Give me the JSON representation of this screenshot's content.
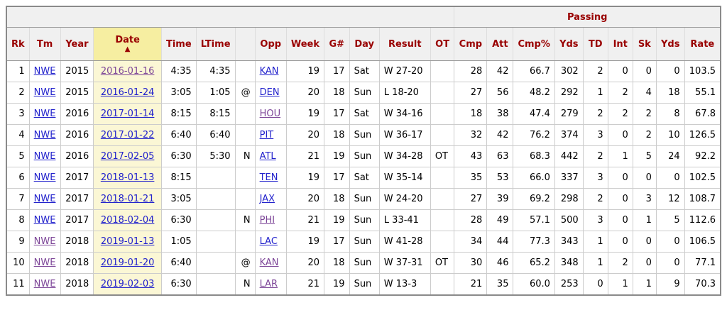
{
  "colors": {
    "header_text": "#990000",
    "link": "#2222cc",
    "link_visited": "#7d4698",
    "header_bg": "#f0f0f0",
    "sort_header_bg": "#f6eea1",
    "highlight_cell_bg": "#fbf7d5",
    "grid": "#cccccc",
    "outer_border": "#8a8a8a"
  },
  "table": {
    "group_header": {
      "blank": "",
      "passing": "Passing"
    },
    "sort_arrow": "▲",
    "sorted_column": "date",
    "columns": [
      {
        "key": "rk",
        "label": "Rk"
      },
      {
        "key": "tm",
        "label": "Tm"
      },
      {
        "key": "year",
        "label": "Year"
      },
      {
        "key": "date",
        "label": "Date"
      },
      {
        "key": "time",
        "label": "Time"
      },
      {
        "key": "ltime",
        "label": "LTime"
      },
      {
        "key": "at",
        "label": ""
      },
      {
        "key": "opp",
        "label": "Opp"
      },
      {
        "key": "week",
        "label": "Week"
      },
      {
        "key": "gn",
        "label": "G#"
      },
      {
        "key": "day",
        "label": "Day"
      },
      {
        "key": "result",
        "label": "Result"
      },
      {
        "key": "ot",
        "label": "OT"
      },
      {
        "key": "cmp",
        "label": "Cmp"
      },
      {
        "key": "att",
        "label": "Att"
      },
      {
        "key": "cmppct",
        "label": "Cmp%"
      },
      {
        "key": "yds",
        "label": "Yds"
      },
      {
        "key": "td",
        "label": "TD"
      },
      {
        "key": "int",
        "label": "Int"
      },
      {
        "key": "sk",
        "label": "Sk"
      },
      {
        "key": "yds2",
        "label": "Yds"
      },
      {
        "key": "rate",
        "label": "Rate"
      }
    ],
    "rows": [
      {
        "rk": "1",
        "tm": {
          "text": "NWE",
          "visited": false
        },
        "year": "2015",
        "date": {
          "text": "2016-01-16",
          "visited": true
        },
        "time": "4:35",
        "ltime": "4:35",
        "at": "",
        "opp": {
          "text": "KAN",
          "visited": false
        },
        "week": "19",
        "gn": "17",
        "day": "Sat",
        "result": "W 27-20",
        "ot": "",
        "cmp": "28",
        "att": "42",
        "cmppct": "66.7",
        "yds": "302",
        "td": "2",
        "int": "0",
        "sk": "0",
        "yds2": "0",
        "rate": "103.5"
      },
      {
        "rk": "2",
        "tm": {
          "text": "NWE",
          "visited": false
        },
        "year": "2015",
        "date": {
          "text": "2016-01-24",
          "visited": false
        },
        "time": "3:05",
        "ltime": "1:05",
        "at": "@",
        "opp": {
          "text": "DEN",
          "visited": false
        },
        "week": "20",
        "gn": "18",
        "day": "Sun",
        "result": "L 18-20",
        "ot": "",
        "cmp": "27",
        "att": "56",
        "cmppct": "48.2",
        "yds": "292",
        "td": "1",
        "int": "2",
        "sk": "4",
        "yds2": "18",
        "rate": "55.1"
      },
      {
        "rk": "3",
        "tm": {
          "text": "NWE",
          "visited": false
        },
        "year": "2016",
        "date": {
          "text": "2017-01-14",
          "visited": false
        },
        "time": "8:15",
        "ltime": "8:15",
        "at": "",
        "opp": {
          "text": "HOU",
          "visited": true
        },
        "week": "19",
        "gn": "17",
        "day": "Sat",
        "result": "W 34-16",
        "ot": "",
        "cmp": "18",
        "att": "38",
        "cmppct": "47.4",
        "yds": "279",
        "td": "2",
        "int": "2",
        "sk": "2",
        "yds2": "8",
        "rate": "67.8"
      },
      {
        "rk": "4",
        "tm": {
          "text": "NWE",
          "visited": false
        },
        "year": "2016",
        "date": {
          "text": "2017-01-22",
          "visited": false
        },
        "time": "6:40",
        "ltime": "6:40",
        "at": "",
        "opp": {
          "text": "PIT",
          "visited": false
        },
        "week": "20",
        "gn": "18",
        "day": "Sun",
        "result": "W 36-17",
        "ot": "",
        "cmp": "32",
        "att": "42",
        "cmppct": "76.2",
        "yds": "374",
        "td": "3",
        "int": "0",
        "sk": "2",
        "yds2": "10",
        "rate": "126.5"
      },
      {
        "rk": "5",
        "tm": {
          "text": "NWE",
          "visited": false
        },
        "year": "2016",
        "date": {
          "text": "2017-02-05",
          "visited": false
        },
        "time": "6:30",
        "ltime": "5:30",
        "at": "N",
        "opp": {
          "text": "ATL",
          "visited": false
        },
        "week": "21",
        "gn": "19",
        "day": "Sun",
        "result": "W 34-28",
        "ot": "OT",
        "cmp": "43",
        "att": "63",
        "cmppct": "68.3",
        "yds": "442",
        "td": "2",
        "int": "1",
        "sk": "5",
        "yds2": "24",
        "rate": "92.2"
      },
      {
        "rk": "6",
        "tm": {
          "text": "NWE",
          "visited": false
        },
        "year": "2017",
        "date": {
          "text": "2018-01-13",
          "visited": false
        },
        "time": "8:15",
        "ltime": "",
        "at": "",
        "opp": {
          "text": "TEN",
          "visited": false
        },
        "week": "19",
        "gn": "17",
        "day": "Sat",
        "result": "W 35-14",
        "ot": "",
        "cmp": "35",
        "att": "53",
        "cmppct": "66.0",
        "yds": "337",
        "td": "3",
        "int": "0",
        "sk": "0",
        "yds2": "0",
        "rate": "102.5"
      },
      {
        "rk": "7",
        "tm": {
          "text": "NWE",
          "visited": false
        },
        "year": "2017",
        "date": {
          "text": "2018-01-21",
          "visited": false
        },
        "time": "3:05",
        "ltime": "",
        "at": "",
        "opp": {
          "text": "JAX",
          "visited": false
        },
        "week": "20",
        "gn": "18",
        "day": "Sun",
        "result": "W 24-20",
        "ot": "",
        "cmp": "27",
        "att": "39",
        "cmppct": "69.2",
        "yds": "298",
        "td": "2",
        "int": "0",
        "sk": "3",
        "yds2": "12",
        "rate": "108.7"
      },
      {
        "rk": "8",
        "tm": {
          "text": "NWE",
          "visited": false
        },
        "year": "2017",
        "date": {
          "text": "2018-02-04",
          "visited": false
        },
        "time": "6:30",
        "ltime": "",
        "at": "N",
        "opp": {
          "text": "PHI",
          "visited": true
        },
        "week": "21",
        "gn": "19",
        "day": "Sun",
        "result": "L 33-41",
        "ot": "",
        "cmp": "28",
        "att": "49",
        "cmppct": "57.1",
        "yds": "500",
        "td": "3",
        "int": "0",
        "sk": "1",
        "yds2": "5",
        "rate": "112.6"
      },
      {
        "rk": "9",
        "tm": {
          "text": "NWE",
          "visited": true
        },
        "year": "2018",
        "date": {
          "text": "2019-01-13",
          "visited": false
        },
        "time": "1:05",
        "ltime": "",
        "at": "",
        "opp": {
          "text": "LAC",
          "visited": false
        },
        "week": "19",
        "gn": "17",
        "day": "Sun",
        "result": "W 41-28",
        "ot": "",
        "cmp": "34",
        "att": "44",
        "cmppct": "77.3",
        "yds": "343",
        "td": "1",
        "int": "0",
        "sk": "0",
        "yds2": "0",
        "rate": "106.5"
      },
      {
        "rk": "10",
        "tm": {
          "text": "NWE",
          "visited": true
        },
        "year": "2018",
        "date": {
          "text": "2019-01-20",
          "visited": false
        },
        "time": "6:40",
        "ltime": "",
        "at": "@",
        "opp": {
          "text": "KAN",
          "visited": true
        },
        "week": "20",
        "gn": "18",
        "day": "Sun",
        "result": "W 37-31",
        "ot": "OT",
        "cmp": "30",
        "att": "46",
        "cmppct": "65.2",
        "yds": "348",
        "td": "1",
        "int": "2",
        "sk": "0",
        "yds2": "0",
        "rate": "77.1"
      },
      {
        "rk": "11",
        "tm": {
          "text": "NWE",
          "visited": true
        },
        "year": "2018",
        "date": {
          "text": "2019-02-03",
          "visited": false
        },
        "time": "6:30",
        "ltime": "",
        "at": "N",
        "opp": {
          "text": "LAR",
          "visited": true
        },
        "week": "21",
        "gn": "19",
        "day": "Sun",
        "result": "W 13-3",
        "ot": "",
        "cmp": "21",
        "att": "35",
        "cmppct": "60.0",
        "yds": "253",
        "td": "0",
        "int": "1",
        "sk": "1",
        "yds2": "9",
        "rate": "70.3"
      }
    ]
  }
}
